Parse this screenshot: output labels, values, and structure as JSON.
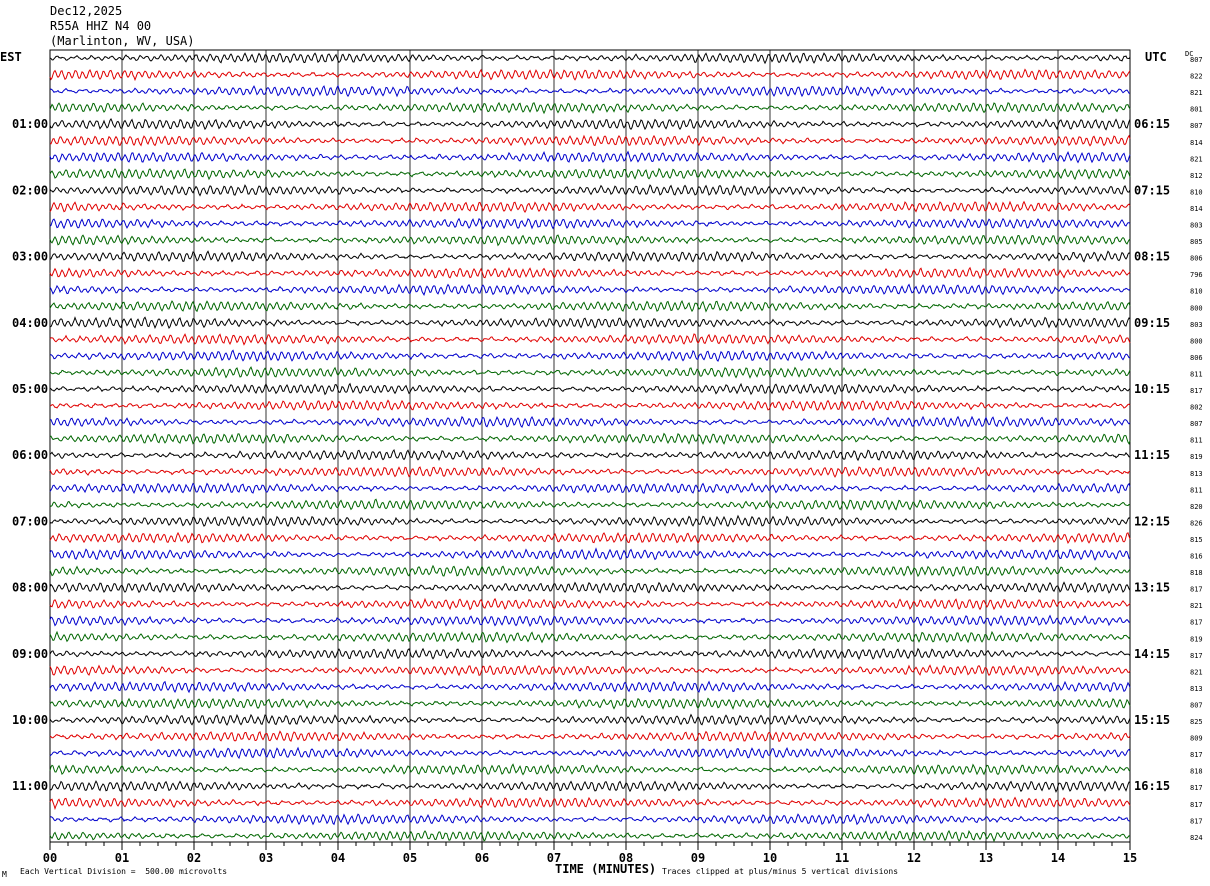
{
  "header": {
    "date": "Dec12,2025",
    "station": "R55A HHZ N4 00",
    "location": "(Marlinton, WV, USA)"
  },
  "left_tz": "EST",
  "right_tz": "UTC",
  "dc_label": "DC",
  "footer": {
    "division": "Each Vertical Division =  500.00 microvolts",
    "clipped": "Traces clipped at plus/minus 5 vertical divisions",
    "corner_mark": "M"
  },
  "chart_data": {
    "type": "line",
    "title": "",
    "xlabel": "TIME (MINUTES)",
    "ylabel": "",
    "xlim": [
      0,
      15
    ],
    "x_ticks": [
      "00",
      "01",
      "02",
      "03",
      "04",
      "05",
      "06",
      "07",
      "08",
      "09",
      "10",
      "11",
      "12",
      "13",
      "14",
      "15"
    ],
    "grid": "vertical lines every minute",
    "trace_colors": [
      "#000000",
      "#e00000",
      "#0000cc",
      "#006600"
    ],
    "hour_labels_left": [
      "01:00",
      "02:00",
      "03:00",
      "04:00",
      "05:00",
      "06:00",
      "07:00",
      "08:00",
      "09:00",
      "10:00",
      "11:00"
    ],
    "hour_labels_right": [
      "06:15",
      "07:15",
      "08:15",
      "09:15",
      "10:15",
      "11:15",
      "12:15",
      "13:15",
      "14:15",
      "15:15",
      "16:15"
    ],
    "dc_offsets": [
      807,
      822,
      821,
      801,
      807,
      814,
      821,
      812,
      810,
      814,
      803,
      805,
      806,
      796,
      810,
      800,
      803,
      800,
      806,
      811,
      817,
      802,
      807,
      811,
      819,
      813,
      811,
      820,
      826,
      815,
      816,
      818,
      817,
      821,
      817,
      819,
      817,
      821,
      813,
      807,
      825,
      809,
      817,
      818,
      817,
      817,
      817,
      824
    ]
  }
}
